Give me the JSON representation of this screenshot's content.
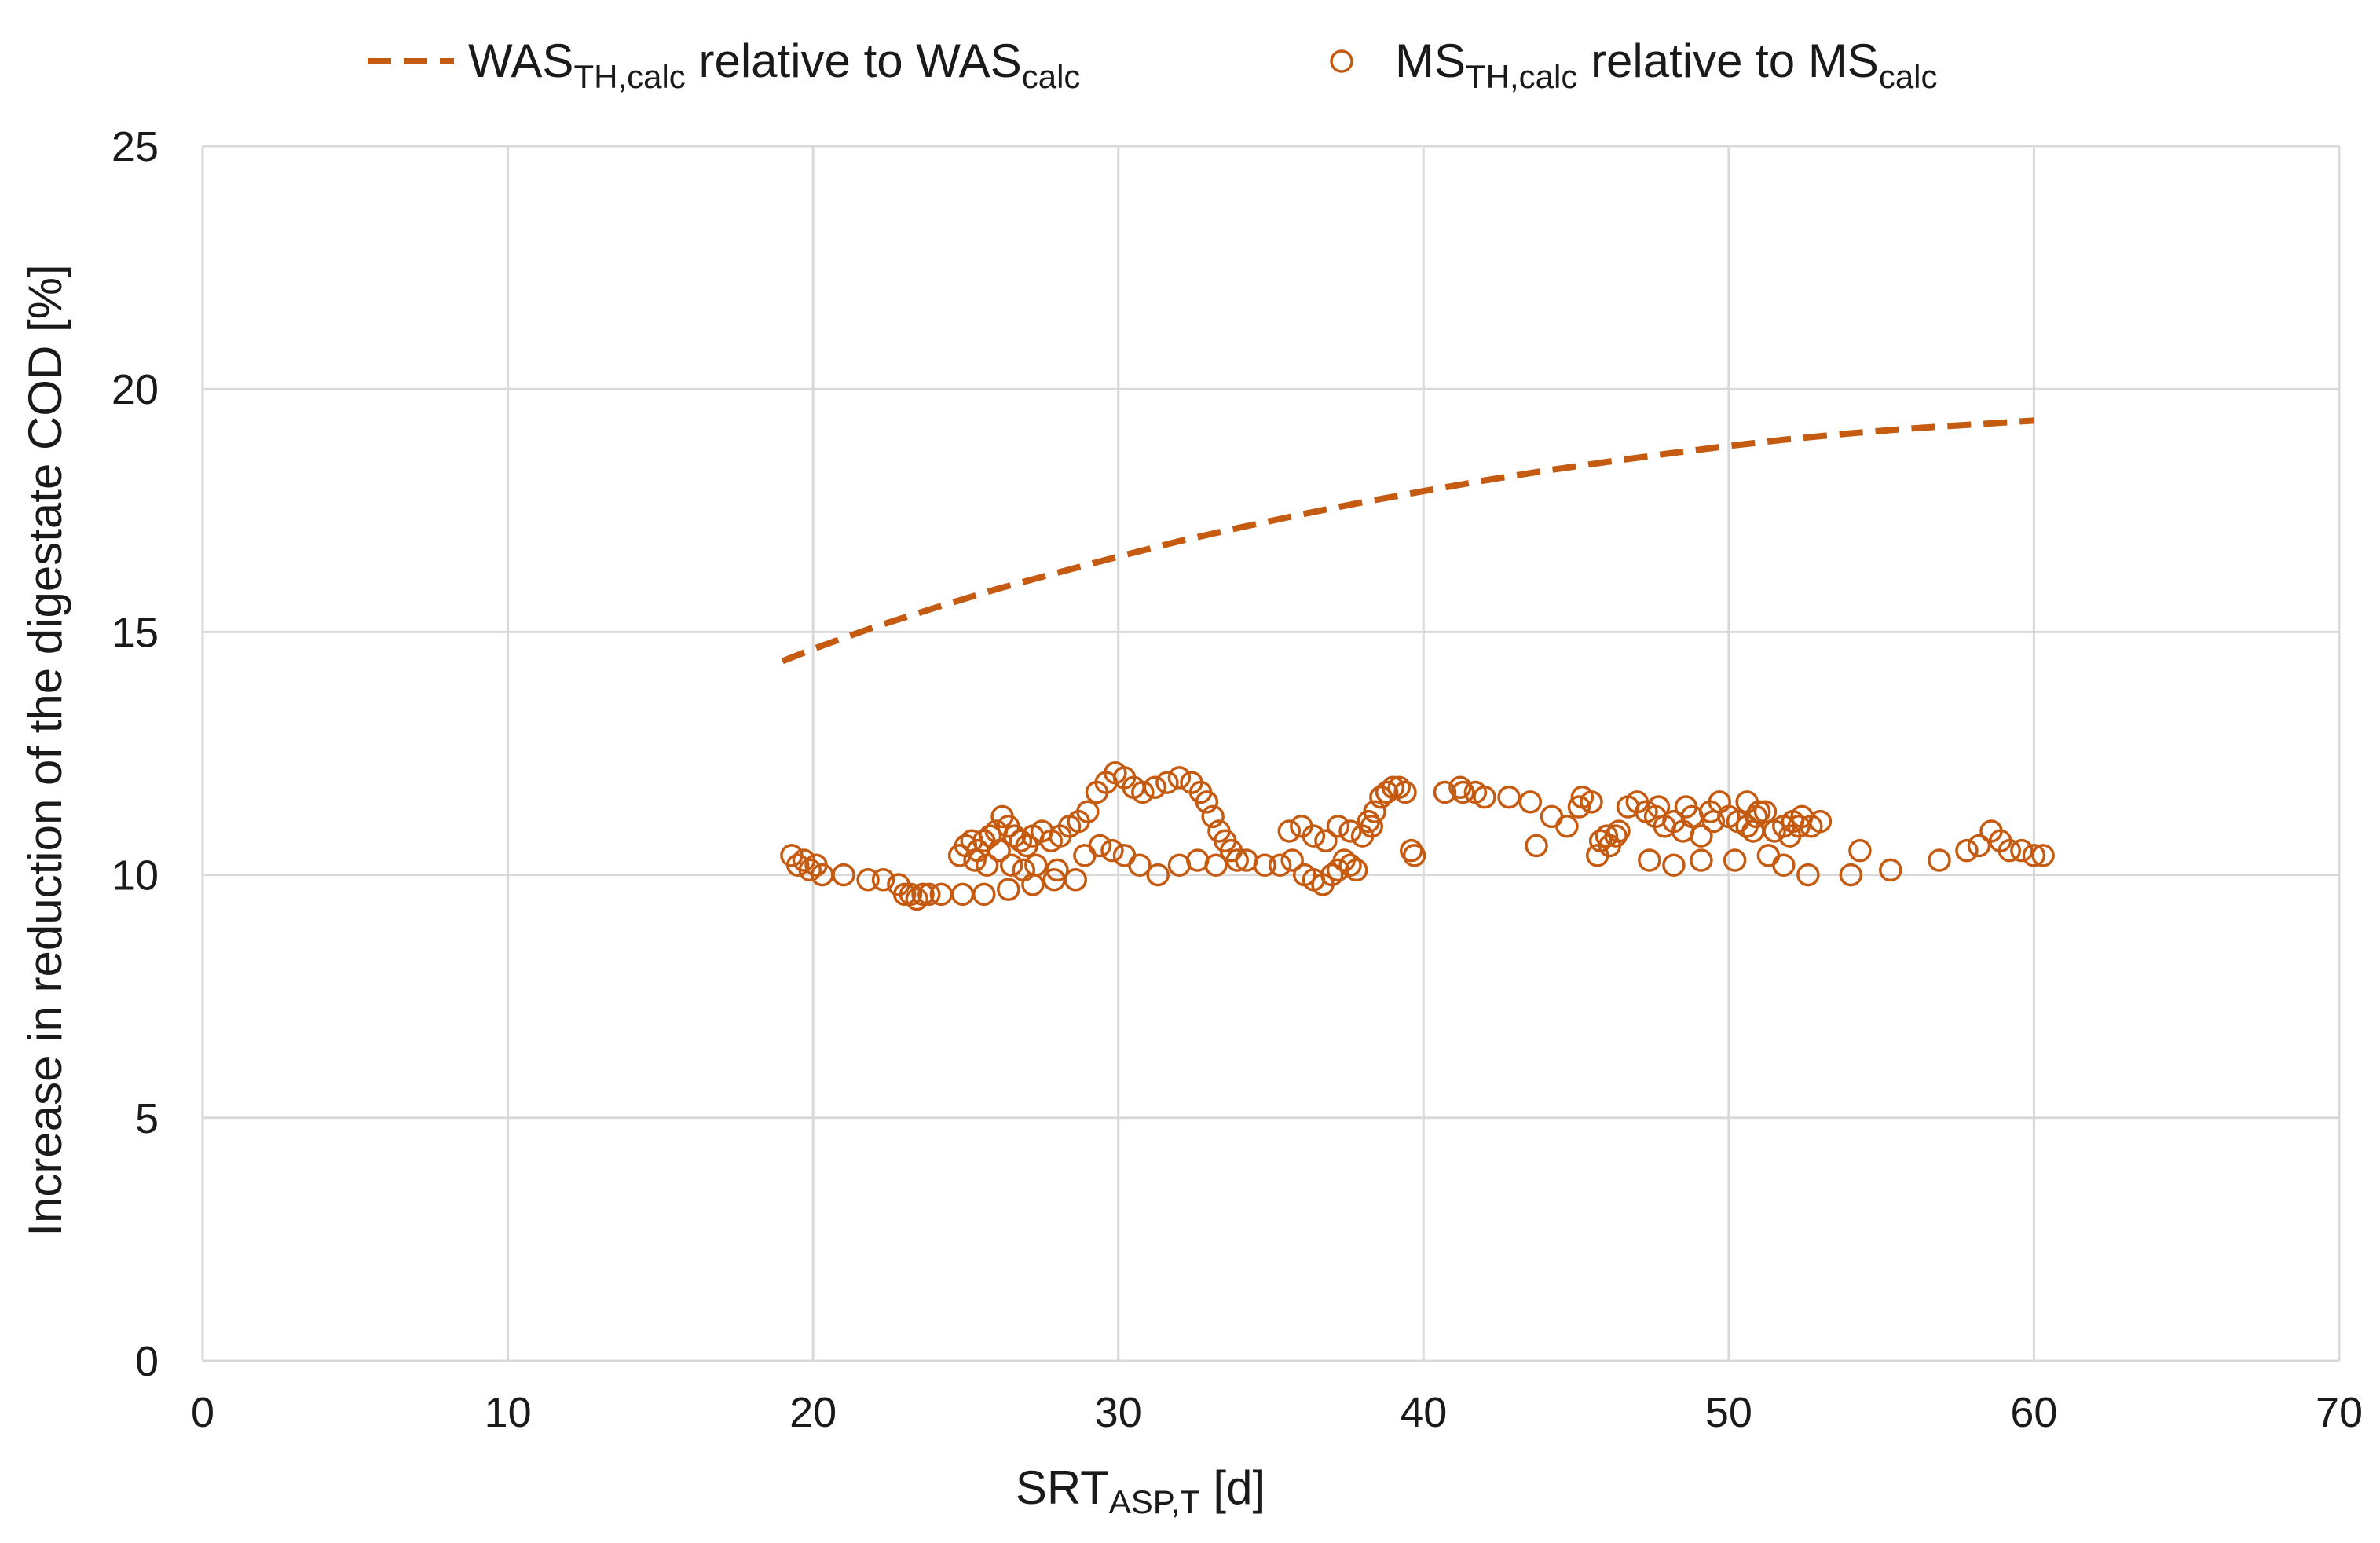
{
  "chart_data": {
    "type": "scatter",
    "title": "",
    "xlabel": {
      "main": "SRT",
      "sub": "ASP,T",
      "tail": " [d]"
    },
    "ylabel": "Increase in reduction of the digestate COD [%]",
    "xlim": [
      0,
      70
    ],
    "ylim": [
      0,
      25
    ],
    "x_ticks": [
      0,
      10,
      20,
      30,
      40,
      50,
      60,
      70
    ],
    "y_ticks": [
      0,
      5,
      10,
      15,
      20,
      25
    ],
    "grid": true,
    "legend_position": "top-center",
    "color": "#C55A11",
    "legend": [
      {
        "kind": "dashed-line",
        "parts": [
          {
            "text": "WAS",
            "sub": false
          },
          {
            "text": "TH,calc",
            "sub": true
          },
          {
            "text": "  relative to WAS",
            "sub": false
          },
          {
            "text": "calc",
            "sub": true
          }
        ]
      },
      {
        "kind": "open-circle",
        "parts": [
          {
            "text": "MS",
            "sub": false
          },
          {
            "text": "TH,calc",
            "sub": true
          },
          {
            "text": "  relative to MS",
            "sub": false
          },
          {
            "text": "calc",
            "sub": true
          }
        ]
      }
    ],
    "series": [
      {
        "name": "WAS_TH,calc relative to WAS_calc",
        "type": "line",
        "style": "dashed",
        "x": [
          19,
          20,
          22,
          24,
          26,
          28,
          30,
          32,
          34,
          36,
          38,
          40,
          42,
          44,
          46,
          48,
          50,
          52,
          54,
          56,
          58,
          60
        ],
        "y": [
          14.4,
          14.65,
          15.1,
          15.5,
          15.88,
          16.22,
          16.55,
          16.87,
          17.15,
          17.42,
          17.67,
          17.9,
          18.12,
          18.32,
          18.5,
          18.67,
          18.83,
          18.97,
          19.09,
          19.19,
          19.27,
          19.35
        ]
      },
      {
        "name": "MS_TH,calc relative to MS_calc",
        "type": "scatter",
        "marker": "open-circle",
        "x": [
          19.3,
          19.5,
          19.7,
          19.9,
          20.1,
          20.3,
          21.0,
          21.8,
          22.3,
          22.8,
          23.0,
          23.2,
          23.4,
          23.6,
          23.8,
          24.2,
          24.9,
          25.6,
          26.4,
          27.2,
          27.9,
          28.6,
          24.8,
          25.0,
          25.2,
          25.4,
          25.6,
          25.8,
          26.0,
          26.2,
          26.4,
          26.6,
          26.8,
          27.0,
          27.2,
          27.5,
          27.8,
          28.1,
          28.4,
          28.7,
          29.0,
          29.3,
          29.6,
          29.9,
          30.2,
          30.5,
          30.8,
          31.2,
          31.6,
          32.0,
          32.4,
          32.7,
          32.9,
          33.1,
          33.3,
          33.5,
          33.7,
          33.9,
          25.3,
          25.7,
          26.1,
          26.5,
          26.9,
          27.3,
          28.0,
          28.9,
          29.4,
          29.8,
          30.2,
          30.7,
          31.3,
          32.0,
          32.6,
          33.2,
          34.2,
          34.8,
          35.3,
          35.7,
          36.1,
          36.4,
          36.7,
          37.0,
          37.2,
          37.4,
          37.6,
          37.8,
          38.0,
          38.2,
          38.4,
          38.6,
          38.8,
          39.0,
          39.2,
          39.4,
          39.7,
          35.6,
          36.0,
          36.4,
          36.8,
          37.2,
          37.6,
          38.3,
          39.6,
          40.7,
          41.3,
          42.0,
          42.8,
          43.5,
          44.2,
          44.7,
          45.1,
          45.5,
          45.8,
          46.1,
          46.4,
          46.7,
          47.0,
          47.3,
          47.6,
          47.9,
          48.2,
          48.5,
          48.8,
          49.1,
          49.4,
          49.7,
          50.0,
          50.3,
          50.6,
          50.9,
          51.2,
          51.5,
          51.8,
          52.1,
          52.4,
          52.7,
          53.0,
          41.2,
          41.7,
          43.7,
          45.7,
          46.3,
          47.4,
          48.2,
          49.1,
          50.2,
          51.3,
          51.8,
          52.6,
          54.0,
          54.3,
          55.3,
          56.9,
          57.8,
          58.2,
          58.6,
          58.9,
          59.2,
          59.6,
          60.0,
          60.3,
          48.6,
          50.6,
          51.0,
          52.0,
          45.2,
          46.0,
          47.7,
          49.5,
          50.8,
          52.3
        ],
        "y": [
          10.4,
          10.2,
          10.3,
          10.1,
          10.2,
          10.0,
          10.0,
          9.9,
          9.9,
          9.8,
          9.6,
          9.6,
          9.5,
          9.6,
          9.6,
          9.6,
          9.6,
          9.6,
          9.7,
          9.8,
          9.9,
          9.9,
          10.4,
          10.6,
          10.7,
          10.5,
          10.7,
          10.8,
          10.9,
          11.2,
          11.0,
          10.8,
          10.7,
          10.6,
          10.8,
          10.9,
          10.7,
          10.8,
          11.0,
          11.1,
          11.3,
          11.7,
          11.9,
          12.1,
          12.0,
          11.8,
          11.7,
          11.8,
          11.9,
          12.0,
          11.9,
          11.7,
          11.5,
          11.2,
          10.9,
          10.7,
          10.5,
          10.3,
          10.3,
          10.2,
          10.5,
          10.2,
          10.1,
          10.2,
          10.1,
          10.4,
          10.6,
          10.5,
          10.4,
          10.2,
          10.0,
          10.2,
          10.3,
          10.2,
          10.3,
          10.2,
          10.2,
          10.3,
          10.0,
          9.9,
          9.8,
          10.0,
          10.1,
          10.3,
          10.2,
          10.1,
          10.8,
          11.1,
          11.3,
          11.6,
          11.7,
          11.8,
          11.8,
          11.7,
          10.4,
          10.9,
          11.0,
          10.8,
          10.7,
          11.0,
          10.9,
          11.0,
          10.5,
          11.7,
          11.7,
          11.6,
          11.6,
          11.5,
          11.2,
          11.0,
          11.4,
          11.5,
          10.7,
          10.6,
          10.9,
          11.4,
          11.5,
          11.3,
          11.2,
          11.0,
          11.1,
          10.9,
          11.2,
          10.8,
          11.3,
          11.5,
          11.2,
          11.1,
          11.0,
          11.2,
          11.3,
          10.9,
          11.0,
          11.1,
          11.2,
          11.0,
          11.1,
          11.8,
          11.7,
          10.6,
          10.4,
          10.8,
          10.3,
          10.2,
          10.3,
          10.3,
          10.4,
          10.2,
          10.0,
          10.0,
          10.5,
          10.1,
          10.3,
          10.5,
          10.6,
          10.9,
          10.7,
          10.5,
          10.5,
          10.4,
          10.4,
          11.4,
          11.5,
          11.3,
          10.8,
          11.6,
          10.8,
          11.4,
          11.1,
          10.9,
          11.0
        ]
      }
    ]
  }
}
